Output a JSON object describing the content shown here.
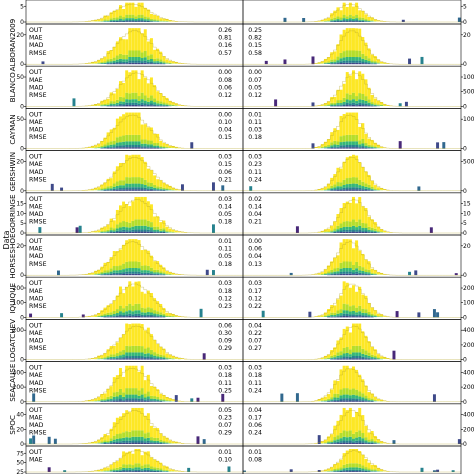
{
  "figure": {
    "ylabel": "Data",
    "stat_labels": [
      "OUT",
      "MAE",
      "MAD",
      "RMSE"
    ]
  },
  "chart_data": {
    "type": "bar",
    "columns": 2,
    "colors": [
      "#fde725",
      "#b5de2b",
      "#6ece58",
      "#35b779",
      "#1f9e89",
      "#26828e",
      "#31688e",
      "#3e4989",
      "#482878",
      "#440154"
    ],
    "panels": [
      {
        "name": "",
        "left": {
          "stats": [],
          "yticks": [
            "0",
            "5"
          ]
        },
        "right": {
          "stats": [],
          "yticks": [
            "0",
            "5"
          ]
        }
      },
      {
        "name": "ALBORAN2009",
        "left": {
          "stats": [
            "0.26",
            "0.81",
            "0.16",
            "0.57"
          ],
          "yticks": [
            "0",
            "20"
          ]
        },
        "right": {
          "stats": [
            "0.25",
            "0.82",
            "0.15",
            "0.58"
          ],
          "yticks": [
            "0",
            "20"
          ]
        }
      },
      {
        "name": "BLANCO",
        "left": {
          "stats": [
            "0.00",
            "0.08",
            "0.06",
            "0.12"
          ],
          "yticks": [
            "0",
            "50"
          ]
        },
        "right": {
          "stats": [
            "0.00",
            "0.07",
            "0.05",
            "0.12"
          ],
          "yticks": [
            "0",
            "500",
            "1000"
          ]
        }
      },
      {
        "name": "CAYMAN",
        "left": {
          "stats": [
            "0.00",
            "0.10",
            "0.04",
            "0.15"
          ],
          "yticks": [
            "0",
            "50"
          ]
        },
        "right": {
          "stats": [
            "0.01",
            "0.11",
            "0.03",
            "0.18"
          ],
          "yticks": [
            "0",
            "1000"
          ]
        }
      },
      {
        "name": "GERSHWIN",
        "left": {
          "stats": [
            "0.03",
            "0.15",
            "0.06",
            "0.21"
          ],
          "yticks": [
            "0",
            "20"
          ]
        },
        "right": {
          "stats": [
            "0.03",
            "0.23",
            "0.11",
            "0.24"
          ],
          "yticks": [
            "0",
            "500"
          ]
        }
      },
      {
        "name": "GORRINGE",
        "left": {
          "stats": [
            "0.03",
            "0.14",
            "0.05",
            "0.18"
          ],
          "yticks": [
            "0",
            "5",
            "10",
            "15"
          ]
        },
        "right": {
          "stats": [
            "0.02",
            "0.14",
            "0.04",
            "0.21"
          ],
          "yticks": [
            "0",
            "5",
            "10",
            "15"
          ]
        }
      },
      {
        "name": "HORSESHOE",
        "left": {
          "stats": [
            "0.01",
            "0.11",
            "0.05",
            "0.18"
          ],
          "yticks": [
            "0",
            "20"
          ]
        },
        "right": {
          "stats": [
            "0.00",
            "0.06",
            "0.04",
            "0.13"
          ],
          "yticks": [
            "0",
            "20"
          ]
        }
      },
      {
        "name": "IQUIQUE",
        "left": {
          "stats": [
            "0.03",
            "0.18",
            "0.12",
            "0.23"
          ],
          "yticks": [
            "0",
            "100",
            "200"
          ]
        },
        "right": {
          "stats": [
            "0.03",
            "0.17",
            "0.12",
            "0.22"
          ],
          "yticks": [
            "0",
            "100",
            "200"
          ]
        }
      },
      {
        "name": "LOGATCHEV",
        "left": {
          "stats": [
            "0.06",
            "0.30",
            "0.09",
            "0.29"
          ],
          "yticks": [
            "0",
            "200"
          ]
        },
        "right": {
          "stats": [
            "0.04",
            "0.22",
            "0.07",
            "0.27"
          ],
          "yticks": [
            "0",
            "2000",
            "4000"
          ]
        }
      },
      {
        "name": "SEACAUSE",
        "left": {
          "stats": [
            "0.03",
            "0.18",
            "0.11",
            "0.25"
          ],
          "yticks": [
            "0",
            "200",
            "400"
          ]
        },
        "right": {
          "stats": [
            "0.03",
            "0.18",
            "0.11",
            "0.24"
          ],
          "yticks": [
            "0",
            "2000",
            "4000"
          ]
        }
      },
      {
        "name": "SPOC",
        "left": {
          "stats": [
            "0.05",
            "0.23",
            "0.07",
            "0.29"
          ],
          "yticks": [
            "0",
            "20",
            "40"
          ]
        },
        "right": {
          "stats": [
            "0.04",
            "0.17",
            "0.06",
            "0.24"
          ],
          "yticks": [
            "0",
            "200",
            "400"
          ]
        }
      },
      {
        "name": "",
        "left": {
          "stats": [
            "0.01",
            "0.10"
          ],
          "yticks": [
            "25",
            "50",
            "75"
          ]
        },
        "right": {
          "stats": [
            "0.01",
            "0.08"
          ],
          "yticks": []
        }
      }
    ]
  }
}
